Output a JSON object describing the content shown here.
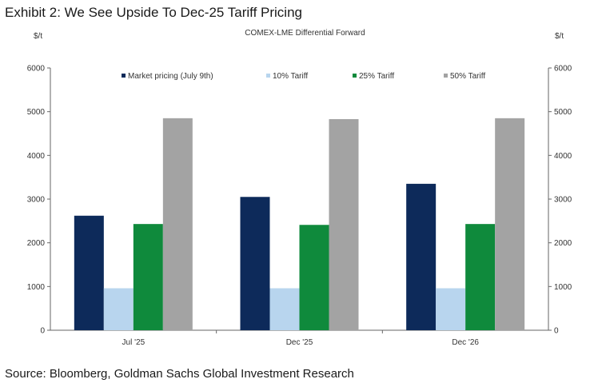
{
  "header": {
    "title": "Exhibit 2: We See Upside To Dec-25 Tariff Pricing",
    "subtitle": "COMEX-LME  Differential Forward",
    "unit_left": "$/t",
    "unit_right": "$/t"
  },
  "chart_data": {
    "type": "bar",
    "title": "COMEX-LME  Differential Forward",
    "ylabel": "$/t",
    "y2label": "$/t",
    "categories": [
      "Jul '25",
      "Dec '25",
      "Dec '26"
    ],
    "series": [
      {
        "name": "Market pricing (July 9th)",
        "color": "#0d2a5a",
        "values": [
          2620,
          3050,
          3350
        ]
      },
      {
        "name": "10% Tariff",
        "color": "#b8d5ee",
        "values": [
          960,
          960,
          960
        ]
      },
      {
        "name": "25% Tariff",
        "color": "#0f8a3c",
        "values": [
          2430,
          2410,
          2430
        ]
      },
      {
        "name": "50% Tariff",
        "color": "#a3a3a3",
        "values": [
          4850,
          4830,
          4850
        ]
      }
    ],
    "ylim": [
      0,
      6000
    ],
    "yticks": [
      0,
      1000,
      2000,
      3000,
      4000,
      5000,
      6000
    ],
    "secondary_axis": true,
    "grid": false,
    "legend_position": "top"
  },
  "footer": {
    "source": "Source: Bloomberg, Goldman Sachs Global Investment Research"
  }
}
